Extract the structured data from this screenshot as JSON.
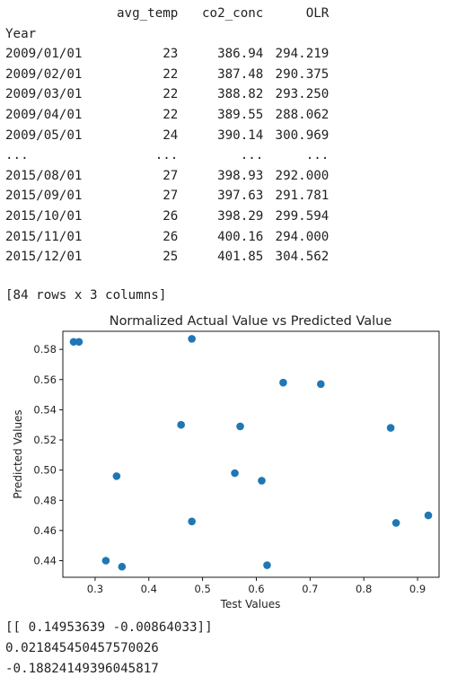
{
  "table": {
    "columns": [
      "avg_temp",
      "co2_conc",
      "OLR"
    ],
    "index_name": "Year",
    "rows": [
      [
        "2009/01/01",
        "23",
        "386.94",
        "294.219"
      ],
      [
        "2009/02/01",
        "22",
        "387.48",
        "290.375"
      ],
      [
        "2009/03/01",
        "22",
        "388.82",
        "293.250"
      ],
      [
        "2009/04/01",
        "22",
        "389.55",
        "288.062"
      ],
      [
        "2009/05/01",
        "24",
        "390.14",
        "300.969"
      ],
      [
        "...",
        "...",
        "...",
        "..."
      ],
      [
        "2015/08/01",
        "27",
        "398.93",
        "292.000"
      ],
      [
        "2015/09/01",
        "27",
        "397.63",
        "291.781"
      ],
      [
        "2015/10/01",
        "26",
        "398.29",
        "299.594"
      ],
      [
        "2015/11/01",
        "26",
        "400.16",
        "294.000"
      ],
      [
        "2015/12/01",
        "25",
        "401.85",
        "304.562"
      ]
    ],
    "summary": "[84 rows x 3 columns]"
  },
  "chart_data": {
    "type": "scatter",
    "title": "Normalized Actual Value vs Predicted Value",
    "xlabel": "Test Values",
    "ylabel": "Predicted Values",
    "xlim": [
      0.24,
      0.94
    ],
    "ylim": [
      0.429,
      0.592
    ],
    "xticks": [
      0.3,
      0.4,
      0.5,
      0.6,
      0.7,
      0.8,
      0.9
    ],
    "yticks": [
      0.44,
      0.46,
      0.48,
      0.5,
      0.52,
      0.54,
      0.56,
      0.58
    ],
    "xtick_labels": [
      "0.3",
      "0.4",
      "0.5",
      "0.6",
      "0.7",
      "0.8",
      "0.9"
    ],
    "ytick_labels": [
      "0.44",
      "0.46",
      "0.48",
      "0.50",
      "0.52",
      "0.54",
      "0.56",
      "0.58"
    ],
    "grid": false,
    "point_color": "#1f77b4",
    "x": [
      0.26,
      0.27,
      0.32,
      0.34,
      0.35,
      0.46,
      0.48,
      0.48,
      0.56,
      0.57,
      0.61,
      0.62,
      0.65,
      0.72,
      0.85,
      0.86,
      0.92
    ],
    "y": [
      0.585,
      0.585,
      0.44,
      0.496,
      0.436,
      0.53,
      0.587,
      0.466,
      0.498,
      0.529,
      0.493,
      0.437,
      0.558,
      0.557,
      0.528,
      0.465,
      0.47
    ]
  },
  "output": {
    "coef_line": "[[ 0.14953639 -0.00864033]]",
    "value1": "0.021845450457570026",
    "value2": "-0.18824149396045817"
  }
}
